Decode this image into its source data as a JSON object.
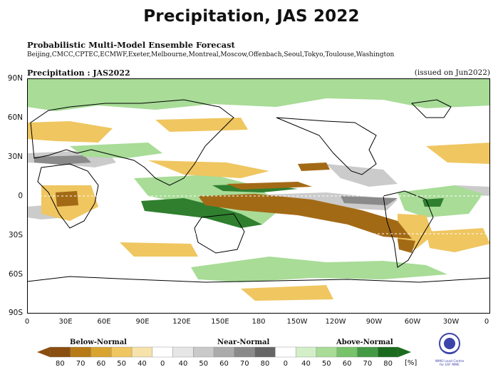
{
  "slide_title": "Precipitation, JAS 2022",
  "forecast": {
    "title": "Probabilistic Multi-Model Ensemble Forecast",
    "centres": "Beijing,CMCC,CPTEC,ECMWF,Exeter,Melbourne,Montreal,Moscow,Offenbach,Seoul,Tokyo,Toulouse,Washington",
    "panel_label": "Precipitation : JAS2022",
    "issued": "(issued on Jun2022)"
  },
  "map": {
    "lat_labels": [
      "90N",
      "60N",
      "30N",
      "0",
      "30S",
      "60S",
      "90S"
    ],
    "lon_labels": [
      "0",
      "30E",
      "60E",
      "90E",
      "120E",
      "150E",
      "180",
      "150W",
      "120W",
      "90W",
      "60W",
      "30W",
      "0"
    ]
  },
  "legend": {
    "categories": [
      "Below-Normal",
      "Near-Normal",
      "Above-Normal"
    ],
    "below_labels": [
      "80",
      "70",
      "60",
      "50",
      "40"
    ],
    "near_labels": [
      "40",
      "50",
      "60",
      "70",
      "80"
    ],
    "above_labels": [
      "40",
      "50",
      "60",
      "70",
      "80"
    ],
    "zero_labels": [
      "0",
      "0"
    ],
    "unit": "[%]",
    "below_colors": [
      "#8a4e10",
      "#b77a16",
      "#d9a330",
      "#efc660",
      "#f6e2aa"
    ],
    "near_colors": [
      "#e6e6e6",
      "#c9c9c9",
      "#ababab",
      "#8a8a8a",
      "#666666"
    ],
    "above_colors": [
      "#d3efc8",
      "#a8dc97",
      "#78c26a",
      "#449a44",
      "#1b6b1f"
    ]
  },
  "logo": {
    "text": "WMO Lead Centre for LRF MME"
  }
}
